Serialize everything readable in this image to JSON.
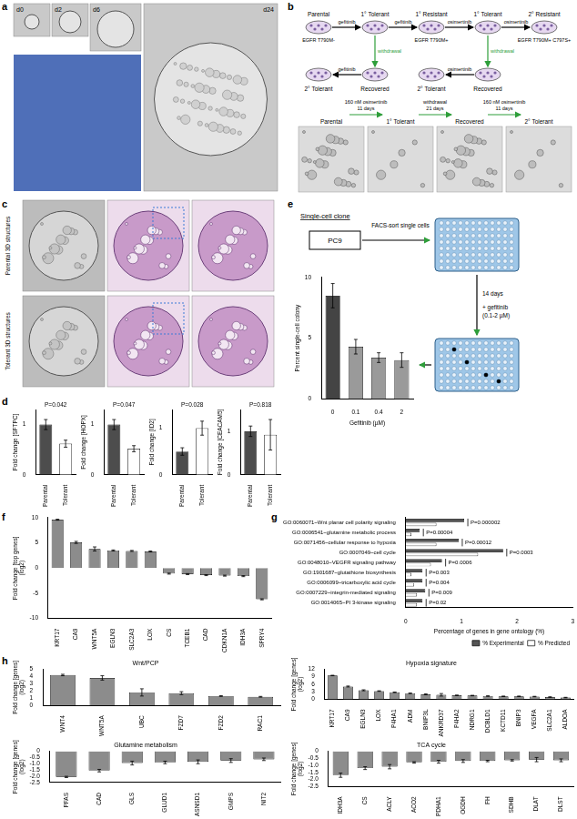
{
  "panel_labels": [
    "a",
    "b",
    "c",
    "d",
    "e",
    "f",
    "g",
    "h"
  ],
  "panel_a": {
    "time_labels": [
      "d0",
      "d2",
      "d6",
      "d24"
    ]
  },
  "panel_b": {
    "nodes": [
      {
        "label": "Parental",
        "sublabel": "EGFR T790M-"
      },
      {
        "label": "1° Tolerant"
      },
      {
        "label": "1° Resistant",
        "sublabel": "EGFR T790M+"
      },
      {
        "label": "1° Tolerant"
      },
      {
        "label": "2° Resistant",
        "sublabel": "EGFR T790M+ C797S+"
      },
      {
        "label": "2° Tolerant"
      },
      {
        "label": "Recovered"
      },
      {
        "label": "2° Tolerant"
      },
      {
        "label": "Recovered"
      }
    ],
    "edges": [
      {
        "from": 0,
        "to": 1,
        "label": "gefitinib",
        "color": "#000000"
      },
      {
        "from": 1,
        "to": 2,
        "label": "gefitinib",
        "color": "#000000"
      },
      {
        "from": 2,
        "to": 3,
        "label": "osimertinib",
        "color": "#000000"
      },
      {
        "from": 3,
        "to": 4,
        "label": "osimertinib",
        "color": "#000000"
      },
      {
        "from": 1,
        "to": 6,
        "label": "withdrawal",
        "color": "#2e9e3a"
      },
      {
        "from": 6,
        "to": 5,
        "label": "gefitinib",
        "color": "#000000"
      },
      {
        "from": 3,
        "to": 8,
        "label": "withdrawal",
        "color": "#2e9e3a"
      },
      {
        "from": 8,
        "to": 7,
        "label": "osimertinib",
        "color": "#000000"
      }
    ],
    "strip": {
      "labels": [
        "Parental",
        "1° Tolerant",
        "Recovered",
        "2° Tolerant"
      ],
      "steps": [
        {
          "treatment": "160 nM osimertinib",
          "duration": "11 days"
        },
        {
          "treatment": "withdrawal",
          "duration": "21 days"
        },
        {
          "treatment": "160 nM osimertinib",
          "duration": "11 days"
        }
      ]
    }
  },
  "panel_c": {
    "row_labels": [
      "Parental 3D structures",
      "Tolerant 3D structures"
    ]
  },
  "panel_e": {
    "title": "Single-cell clone",
    "cell_line": "PC9",
    "sort_step": "FACS-sort single cells",
    "duration": "14 days",
    "treatment": "+ gefitinib (0.1-2 µM)"
  },
  "chart_data": [
    {
      "type": "bar",
      "y_label": "Fold change [SFTPC]",
      "categories": [
        "Parental",
        "Tolerant"
      ],
      "values": [
        1.0,
        0.62
      ],
      "errors": [
        0.1,
        0.07
      ],
      "colors": [
        "#4d4d4d",
        "#ffffff"
      ],
      "ylim": [
        0,
        1.3
      ],
      "yticks": [
        0,
        1
      ],
      "annotations": [
        "P=0.042"
      ],
      "grid": false
    },
    {
      "type": "bar",
      "y_label": "Fold change [HOPX]",
      "categories": [
        "Parental",
        "Tolerant"
      ],
      "values": [
        1.0,
        0.52
      ],
      "errors": [
        0.1,
        0.06
      ],
      "colors": [
        "#4d4d4d",
        "#ffffff"
      ],
      "ylim": [
        0,
        1.3
      ],
      "yticks": [
        0,
        1
      ],
      "annotations": [
        "P=0.047"
      ],
      "grid": false
    },
    {
      "type": "bar",
      "y_label": "Fold change [ID2]",
      "categories": [
        "Parental",
        "Tolerant"
      ],
      "values": [
        0.5,
        1.0
      ],
      "errors": [
        0.08,
        0.15
      ],
      "colors": [
        "#4d4d4d",
        "#ffffff"
      ],
      "ylim": [
        0,
        1.4
      ],
      "yticks": [
        0,
        1
      ],
      "annotations": [
        "P=0.028"
      ],
      "grid": false
    },
    {
      "type": "bar",
      "y_label": "Fold change [CEACAM5]",
      "categories": [
        "Parental",
        "Tolerant"
      ],
      "values": [
        1.0,
        0.92
      ],
      "errors": [
        0.12,
        0.35
      ],
      "colors": [
        "#4d4d4d",
        "#ffffff"
      ],
      "ylim": [
        0,
        1.5
      ],
      "yticks": [
        0,
        1
      ],
      "annotations": [
        "P=0.818"
      ],
      "grid": false
    },
    {
      "type": "bar",
      "y_label": "Percent single-cell colony",
      "x_label": "Gefitinib (µM)",
      "categories": [
        "0",
        "0.1",
        "0.4",
        "2"
      ],
      "values": [
        8.5,
        4.3,
        3.4,
        3.2
      ],
      "errors": [
        1.0,
        0.6,
        0.4,
        0.6
      ],
      "colors": [
        "#444444",
        "#9a9a9a",
        "#9a9a9a",
        "#9a9a9a"
      ],
      "ylim": [
        0,
        10
      ],
      "yticks": [
        0,
        5,
        10
      ],
      "grid": false
    },
    {
      "type": "bar",
      "y_label": "Fold change [top genes](log2)",
      "categories": [
        "KRT17",
        "CA9",
        "WNT5A",
        "EGLN3",
        "SLC2A3",
        "LOX",
        "CS",
        "TCEB1",
        "CAD",
        "CDKN1A",
        "IDH3A",
        "SPRY4"
      ],
      "values": [
        9.6,
        5.1,
        3.8,
        3.5,
        3.4,
        3.3,
        -1.1,
        -1.2,
        -1.4,
        -1.5,
        -1.6,
        -6.2
      ],
      "errors": [
        0.1,
        0.2,
        0.4,
        0.1,
        0.1,
        0.1,
        0.1,
        0.1,
        0.1,
        0.1,
        0.1,
        0.1
      ],
      "color": "#8c8c8c",
      "ylim": [
        -10,
        10
      ],
      "yticks": [
        -10,
        -5,
        0,
        5,
        10
      ],
      "grid": false
    },
    {
      "type": "bar",
      "orientation": "horizontal",
      "x_label": "Percentage of genes in gene ontology (%)",
      "categories": [
        "GO:0060071~Wnt planar cell polarity signaling",
        "GO:0006541~glutamine metabolic process",
        "GO:0071456~cellular response to hypoxia",
        "GO:0007049~cell cycle",
        "GO:0048010~VEGFR signaling pathway",
        "GO:1901687~glutathione biosynthesis",
        "GO:0006099~tricarboxylic acid cycle",
        "GO:0007229~integrin-mediated signaling",
        "GO:0014065~PI 3-kinase signaling"
      ],
      "series": [
        {
          "name": "% Experimental",
          "color": "#555555",
          "values": [
            1.05,
            0.25,
            0.95,
            1.75,
            0.65,
            0.3,
            0.3,
            0.35,
            0.3
          ]
        },
        {
          "name": "% Predicted",
          "color": "#ffffff",
          "values": [
            0.55,
            0.1,
            0.55,
            1.3,
            0.45,
            0.1,
            0.15,
            0.2,
            0.2
          ]
        }
      ],
      "p_values": [
        "P=0.000002",
        "P=0.00004",
        "P=0.00012",
        "P=0.0003",
        "P=0.0006",
        "P=0.003",
        "P=0.004",
        "P=0.009",
        "P=0.02"
      ],
      "xlim": [
        0,
        3
      ],
      "xticks": [
        0,
        1,
        2,
        3
      ],
      "legend": "lower right",
      "grid": false
    },
    {
      "type": "bar",
      "title": "Wnt/PCP",
      "y_label": "Fold change [genes](log2)",
      "categories": [
        "WNT4",
        "WNT5A",
        "UBC",
        "FZD7",
        "FZD2",
        "RAC1"
      ],
      "values": [
        4.2,
        3.8,
        1.8,
        1.7,
        1.3,
        1.2
      ],
      "errors": [
        0.1,
        0.3,
        0.5,
        0.2,
        0.05,
        0.05
      ],
      "color": "#8c8c8c",
      "ylim": [
        0,
        5
      ],
      "yticks": [
        0,
        1,
        2,
        3,
        4,
        5
      ],
      "grid": false
    },
    {
      "type": "bar",
      "title": "Hypoxia signature",
      "y_label": "Fold change [genes](log2)",
      "categories": [
        "KRT17",
        "CA9",
        "EGLN3",
        "LOX",
        "P4HA1",
        "ADM",
        "BNIP3L",
        "ANKRD37",
        "P4HA2",
        "NDRG1",
        "DCBLD1",
        "KCTD11",
        "BNIP3",
        "VEGFA",
        "SLC2A1",
        "ALDOA"
      ],
      "values": [
        9.5,
        5.1,
        3.6,
        3.3,
        2.8,
        2.4,
        2.0,
        1.8,
        1.6,
        1.5,
        1.3,
        1.2,
        1.2,
        1.1,
        0.9,
        0.7
      ],
      "errors": [
        0.1,
        0.2,
        0.2,
        0.1,
        0.1,
        0.1,
        0.2,
        0.5,
        0.1,
        0.1,
        0.1,
        0.1,
        0.1,
        0.1,
        0.1,
        0.1
      ],
      "color": "#8c8c8c",
      "ylim": [
        0,
        12
      ],
      "yticks": [
        0,
        3,
        6,
        9,
        12
      ],
      "grid": false
    },
    {
      "type": "bar",
      "title": "Glutamine metabolism",
      "y_label": "Fold change [genes](log2)",
      "categories": [
        "PFAS",
        "CAD",
        "GLS",
        "GLUD1",
        "ASNSD1",
        "GMPS",
        "NIT2"
      ],
      "values": [
        -2.05,
        -1.55,
        -0.95,
        -0.9,
        -0.85,
        -0.75,
        -0.65
      ],
      "errors": [
        0.05,
        0.1,
        0.15,
        0.1,
        0.15,
        0.15,
        0.1
      ],
      "color": "#8c8c8c",
      "ylim": [
        -2.5,
        0
      ],
      "yticks": [
        -2.5,
        {
          "value": -2,
          "label": "-2.0"
        },
        -1.5,
        {
          "value": -1,
          "label": "-1.0"
        },
        -0.5,
        0
      ],
      "grid": false
    },
    {
      "type": "bar",
      "title": "TCA cycle",
      "y_label": "Fold change [genes](log2)",
      "categories": [
        "IDH3A",
        "CS",
        "ACLY",
        "ACO2",
        "PDHA1",
        "OGDH",
        "FH",
        "SDHB",
        "DLAT",
        "DLST"
      ],
      "values": [
        -1.7,
        -1.2,
        -1.1,
        -0.8,
        -0.75,
        -0.7,
        -0.7,
        -0.65,
        -0.6,
        -0.65
      ],
      "errors": [
        0.15,
        0.1,
        0.15,
        0.05,
        0.1,
        0.1,
        0.05,
        0.05,
        0.15,
        0.1
      ],
      "color": "#8c8c8c",
      "ylim": [
        -2.5,
        0
      ],
      "yticks": [
        -2.5,
        {
          "value": -2,
          "label": "-2.0"
        },
        -1.5,
        {
          "value": -1,
          "label": "-1.0"
        },
        -0.5,
        0
      ],
      "grid": false
    }
  ]
}
